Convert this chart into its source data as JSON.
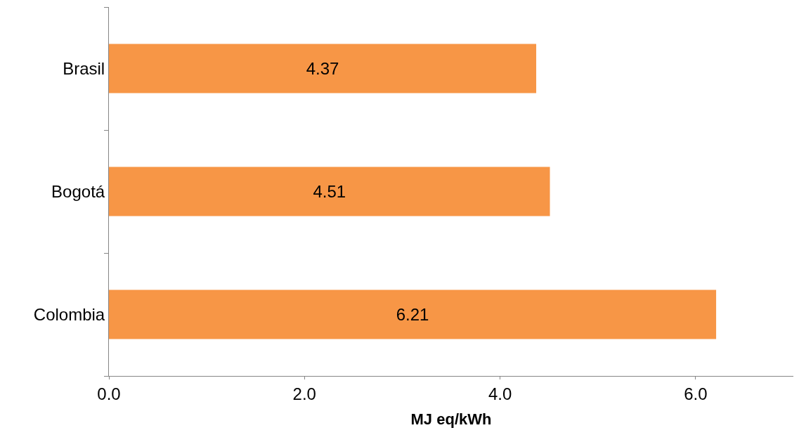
{
  "chart_data": {
    "type": "bar",
    "orientation": "horizontal",
    "xlabel": "MJ eq/kWh",
    "categories": [
      "Brasil",
      "Bogotá",
      "Colombia"
    ],
    "values": [
      4.37,
      4.51,
      6.21
    ],
    "color": "#f79646",
    "xlim": [
      0,
      7
    ],
    "xticks": [
      {
        "value": 0,
        "label": "0.0"
      },
      {
        "value": 2,
        "label": "2.0"
      },
      {
        "value": 4,
        "label": "4.0"
      },
      {
        "value": 6,
        "label": "6.0"
      }
    ],
    "data_labels": true
  }
}
